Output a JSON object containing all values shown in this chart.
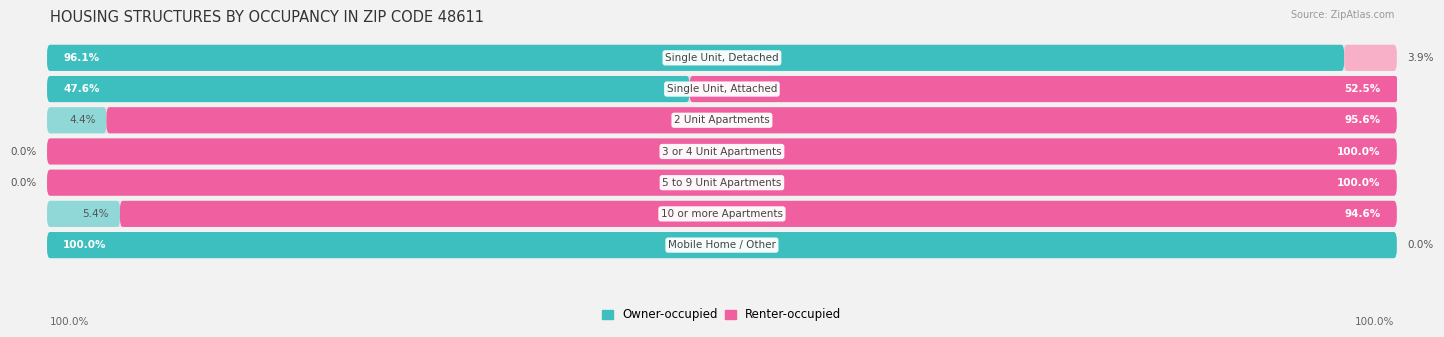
{
  "title": "HOUSING STRUCTURES BY OCCUPANCY IN ZIP CODE 48611",
  "source": "Source: ZipAtlas.com",
  "categories": [
    "Single Unit, Detached",
    "Single Unit, Attached",
    "2 Unit Apartments",
    "3 or 4 Unit Apartments",
    "5 to 9 Unit Apartments",
    "10 or more Apartments",
    "Mobile Home / Other"
  ],
  "owner_pct": [
    96.1,
    47.6,
    4.4,
    0.0,
    0.0,
    5.4,
    100.0
  ],
  "renter_pct": [
    3.9,
    52.5,
    95.6,
    100.0,
    100.0,
    94.6,
    0.0
  ],
  "owner_color": "#3DBFBF",
  "renter_color": "#F060A0",
  "owner_color_light": "#90D8D8",
  "renter_color_light": "#F8B0C8",
  "bg_color": "#F2F2F2",
  "row_bg": "#E2E2E5",
  "title_fontsize": 10.5,
  "label_fontsize": 7.5,
  "legend_fontsize": 8.5,
  "bottom_labels": [
    "100.0%",
    "100.0%"
  ]
}
